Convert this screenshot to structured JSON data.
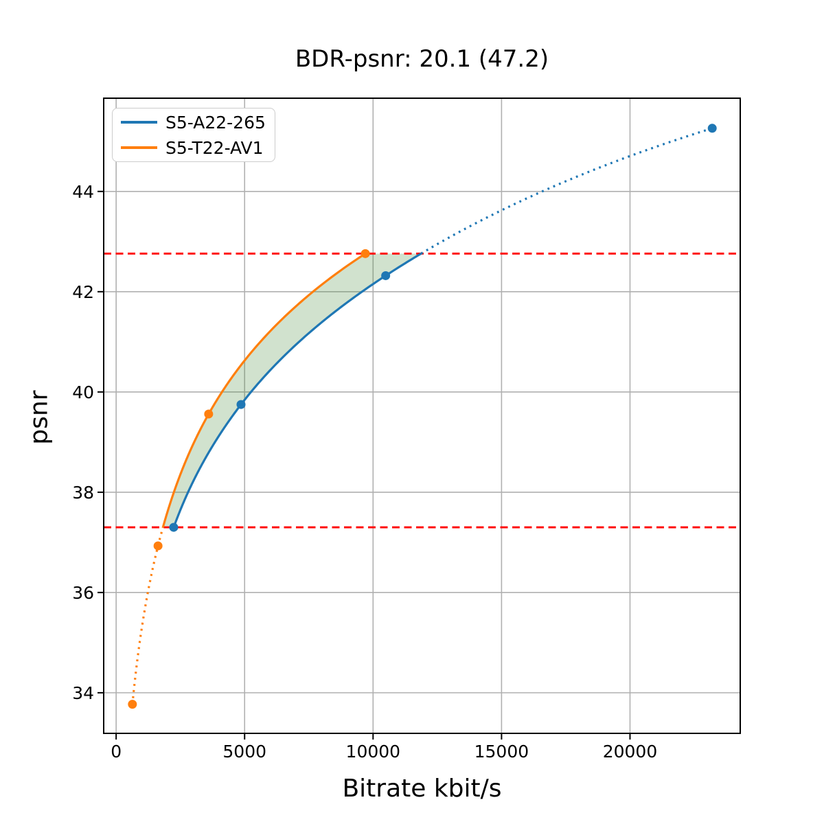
{
  "chart_data": {
    "type": "line",
    "title": "BDR-psnr: 20.1 (47.2)",
    "xlabel": "Bitrate kbit/s",
    "ylabel": "psnr",
    "xlim": [
      -485,
      24290
    ],
    "ylim": [
      33.19,
      45.86
    ],
    "xtick_values": [
      0,
      5000,
      10000,
      15000,
      20000
    ],
    "xtick_labels": [
      "0",
      "5000",
      "10000",
      "15000",
      "20000"
    ],
    "ytick_values": [
      34,
      36,
      38,
      40,
      42,
      44
    ],
    "ytick_labels": [
      "34",
      "36",
      "38",
      "40",
      "42",
      "44"
    ],
    "grid": true,
    "grid_color": "#b0b0b0",
    "legend_position": "upper left",
    "series": [
      {
        "name": "S5-A22-265",
        "color": "#1f77b4",
        "points": [
          [
            2240,
            37.3
          ],
          [
            4860,
            39.75
          ],
          [
            10490,
            42.32
          ],
          [
            23200,
            45.26
          ]
        ],
        "dotted_region": "above_overlap"
      },
      {
        "name": "S5-T22-AV1",
        "color": "#ff7f0e",
        "points": [
          [
            633,
            33.77
          ],
          [
            1630,
            36.93
          ],
          [
            3600,
            39.56
          ],
          [
            9700,
            42.76
          ]
        ],
        "dotted_region": "below_overlap"
      }
    ],
    "hlines": [
      {
        "y": 37.3,
        "color": "#ff0000",
        "style": "dashed"
      },
      {
        "y": 42.76,
        "color": "#ff0000",
        "style": "dashed"
      }
    ],
    "overlap_region": {
      "psnr_low": 37.3,
      "psnr_high": 42.76,
      "fill_color": "rgba(70,140,60,0.25)"
    },
    "interpolation": "monotone cubic in log10(bitrate)"
  }
}
